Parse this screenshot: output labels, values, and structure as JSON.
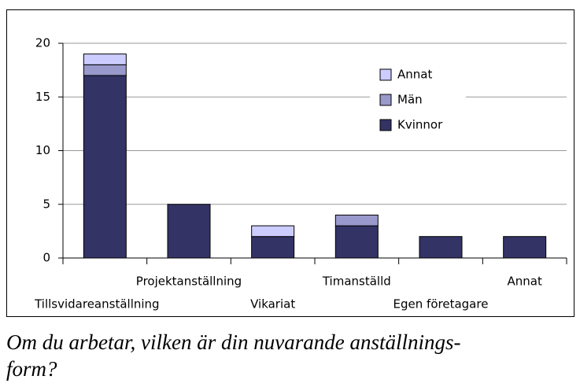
{
  "chart_data": {
    "type": "stacked_bar",
    "categories": [
      "Tillsvidareanställning",
      "Projektanställning",
      "Vikariat",
      "Timanställd",
      "Egen företagare",
      "Annat"
    ],
    "series": [
      {
        "name": "Kvinnor",
        "color": "#333366",
        "values": [
          17,
          5,
          2,
          3,
          2,
          2
        ]
      },
      {
        "name": "Män",
        "color": "#9999cc",
        "values": [
          1,
          0,
          0,
          1,
          0,
          0
        ]
      },
      {
        "name": "Annat",
        "color": "#ccccff",
        "values": [
          1,
          0,
          1,
          0,
          0,
          0
        ]
      }
    ],
    "ylim": [
      0,
      20
    ],
    "yticks": [
      0,
      5,
      10,
      15,
      20
    ],
    "grid": true,
    "legend": "upper right",
    "caption": [
      "Om du arbetar, vilken är din nuvarande anställnings-",
      "form?"
    ]
  }
}
